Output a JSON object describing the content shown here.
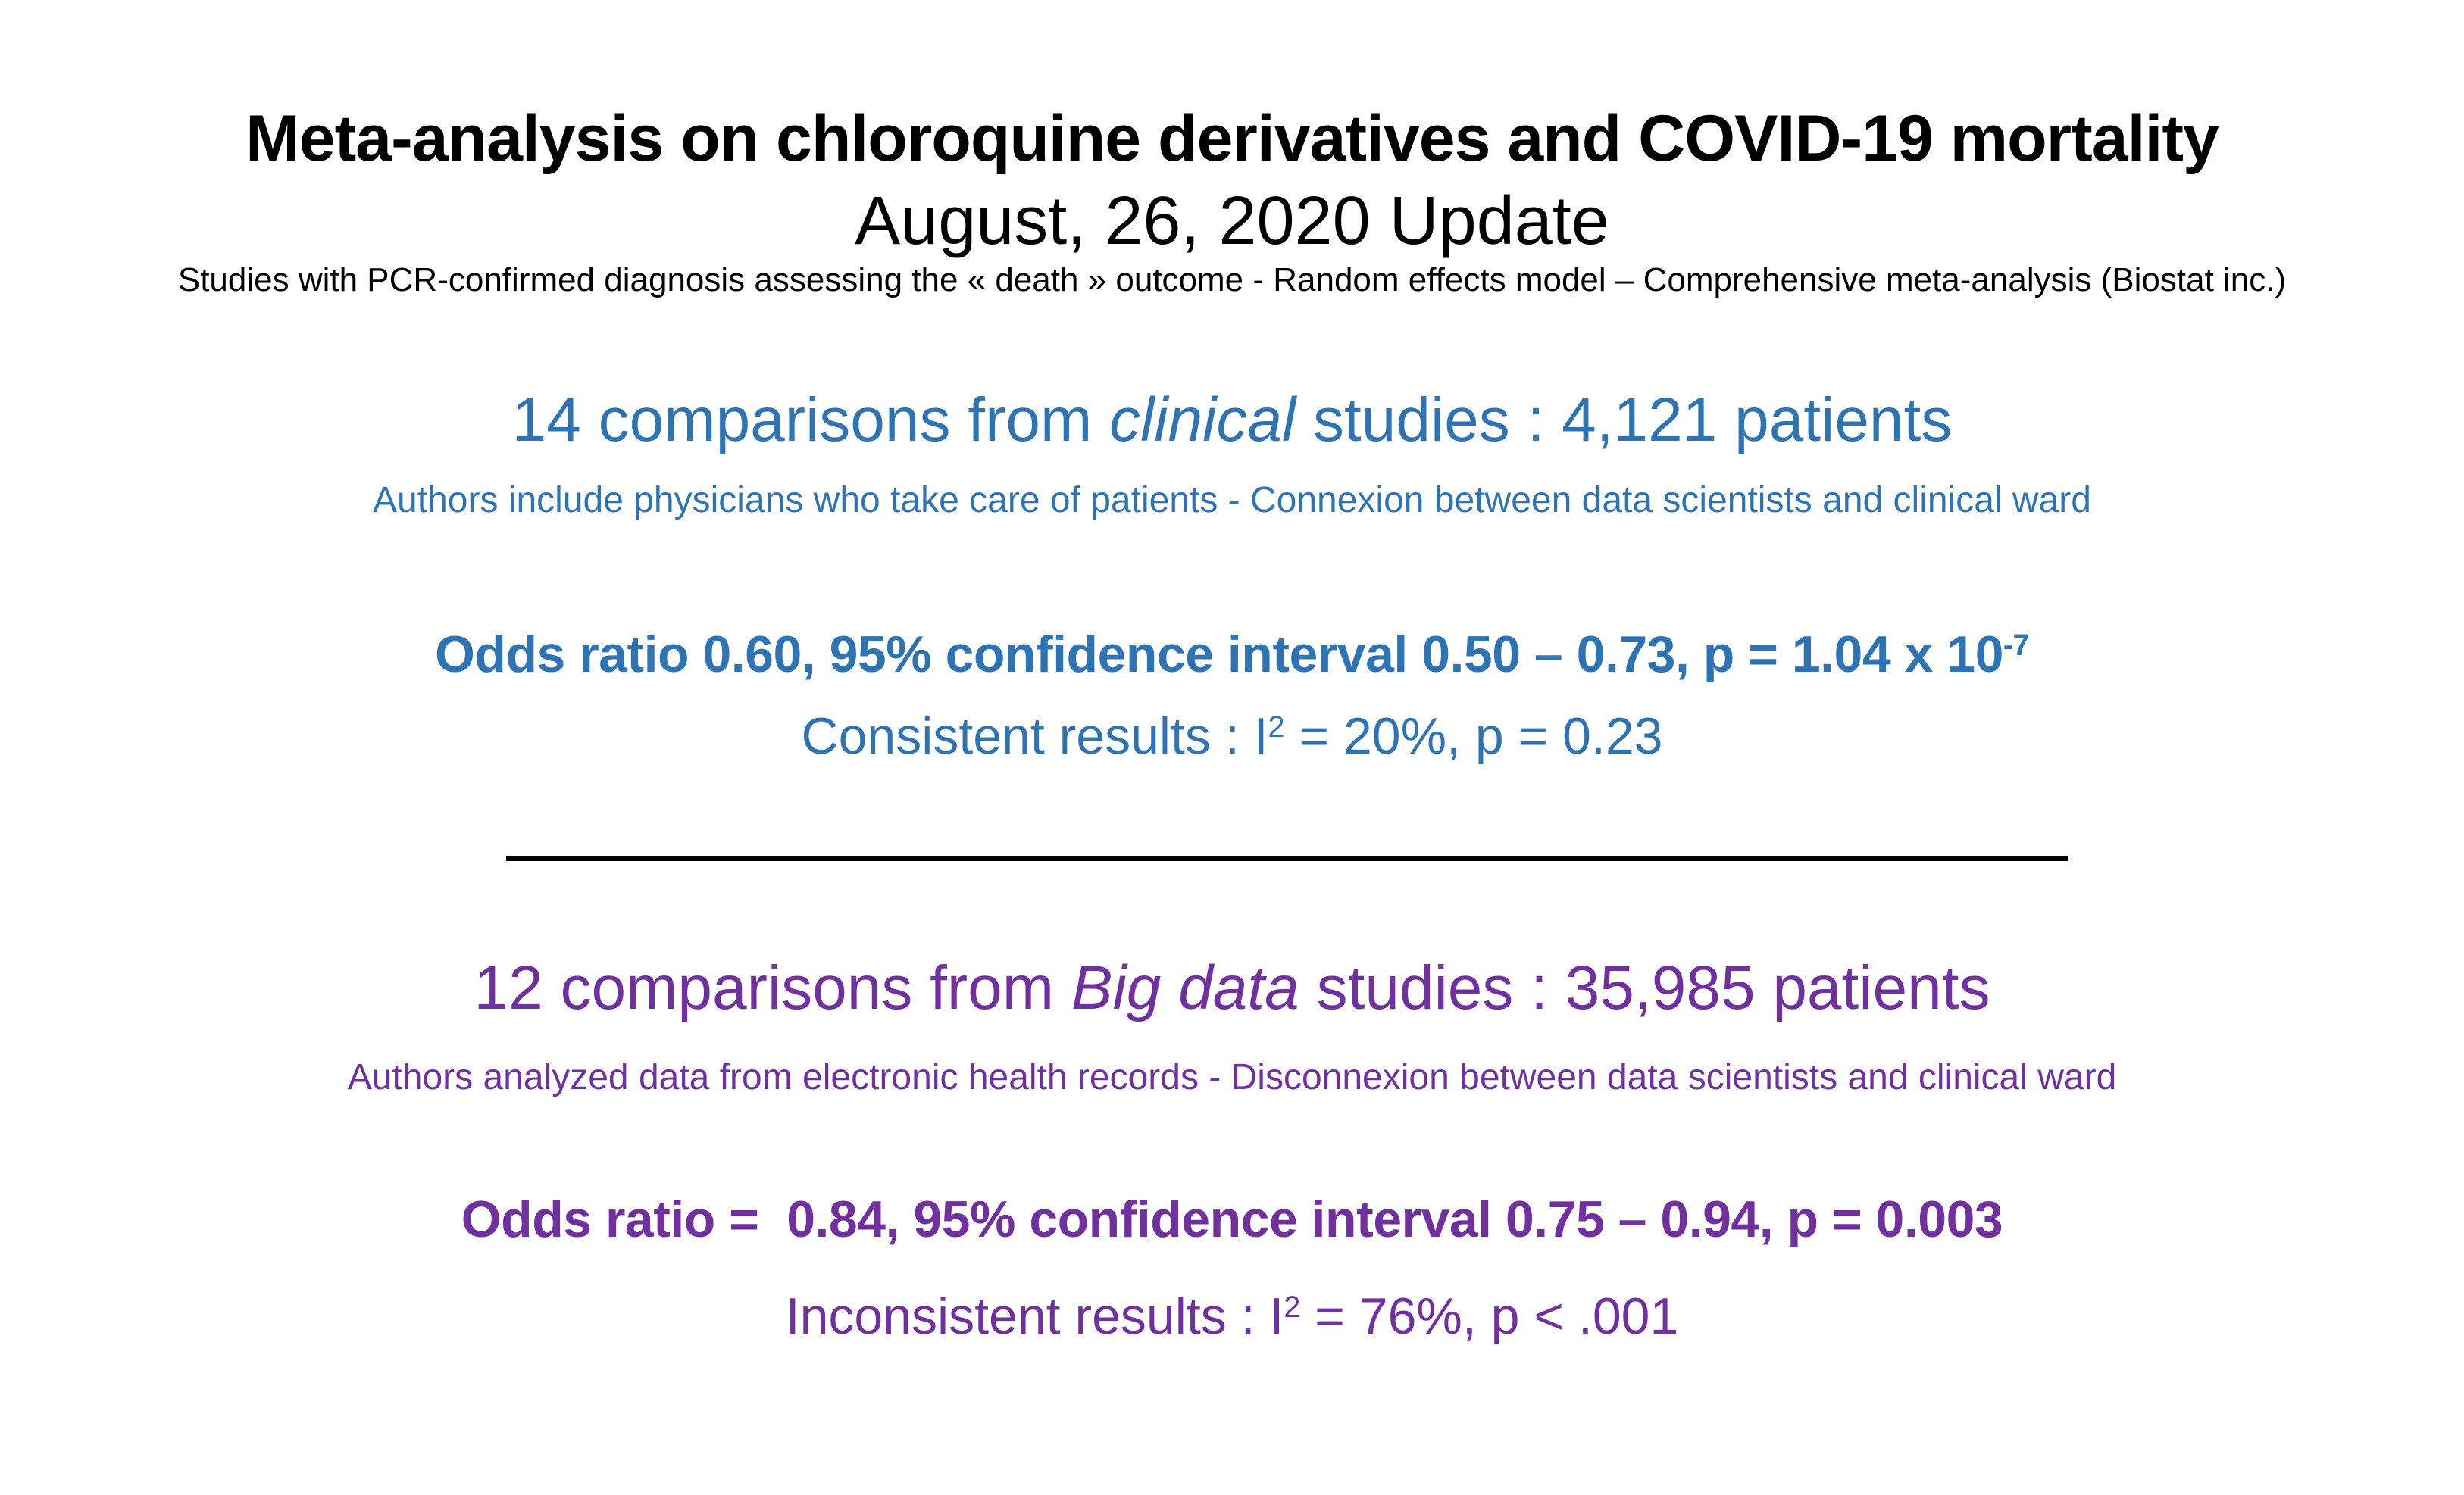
{
  "slide": {
    "title": "Meta-analysis on chloroquine derivatives and COVID-19 mortality",
    "subtitle": "August, 26, 2020 Update",
    "note": "Studies with PCR-confirmed diagnosis assessing the « death » outcome - Random effects model – Comprehensive meta-analysis (Biostat inc.)",
    "colors": {
      "clinical_blue": "#2E74B5",
      "bigdata_purple": "#7030A0",
      "title_black": "#000000"
    },
    "clinical": {
      "heading_pre": "14 comparisons from ",
      "heading_italic": "clinical",
      "heading_post": " studies : 4,121 patients",
      "authors_note": "Authors include physicians who take care of patients - Connexion between data scientists and clinical ward",
      "odds_main": "Odds ratio 0.60, 95% confidence interval 0.50 – 0.73, p = 1.04 x 10",
      "odds_sup": "-7",
      "result_pre": "Consistent results : I",
      "result_sup": "2",
      "result_post": " = 20%, p = 0.23"
    },
    "bigdata": {
      "heading_pre": "12 comparisons from ",
      "heading_italic": "Big data",
      "heading_post": " studies : 35,985 patients",
      "authors_note": "Authors analyzed data from electronic health records - Disconnexion between data scientists and clinical ward",
      "odds_main": "Odds ratio =  0.84, 95% confidence interval 0.75 – 0.94, p = 0.003",
      "result_pre": "Inconsistent results : I",
      "result_sup": "2",
      "result_post": " = 76%, p < .001"
    }
  }
}
